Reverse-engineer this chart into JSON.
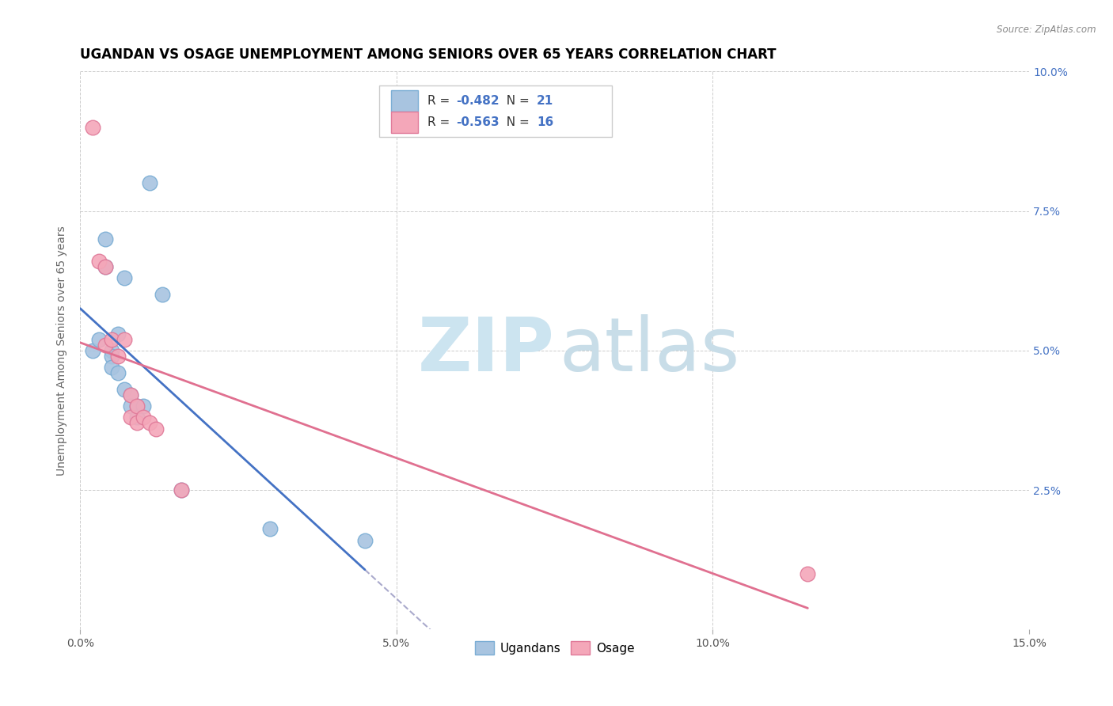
{
  "title": "UGANDAN VS OSAGE UNEMPLOYMENT AMONG SENIORS OVER 65 YEARS CORRELATION CHART",
  "source": "Source: ZipAtlas.com",
  "ylabel": "Unemployment Among Seniors over 65 years",
  "xlim": [
    0.0,
    0.15
  ],
  "ylim": [
    0.0,
    0.1
  ],
  "xticks": [
    0.0,
    0.05,
    0.1,
    0.15
  ],
  "xticklabels": [
    "0.0%",
    "5.0%",
    "10.0%",
    "15.0%"
  ],
  "yticks": [
    0.0,
    0.025,
    0.05,
    0.075,
    0.1
  ],
  "yticklabels_right": [
    "",
    "2.5%",
    "5.0%",
    "7.5%",
    "10.0%"
  ],
  "ugandan_x": [
    0.002,
    0.003,
    0.004,
    0.004,
    0.005,
    0.005,
    0.005,
    0.006,
    0.006,
    0.007,
    0.007,
    0.008,
    0.008,
    0.009,
    0.009,
    0.01,
    0.011,
    0.013,
    0.016,
    0.03,
    0.045
  ],
  "ugandan_y": [
    0.05,
    0.052,
    0.07,
    0.065,
    0.05,
    0.049,
    0.047,
    0.053,
    0.046,
    0.063,
    0.043,
    0.042,
    0.04,
    0.04,
    0.038,
    0.04,
    0.08,
    0.06,
    0.025,
    0.018,
    0.016
  ],
  "osage_x": [
    0.002,
    0.003,
    0.004,
    0.004,
    0.005,
    0.006,
    0.007,
    0.008,
    0.008,
    0.009,
    0.009,
    0.01,
    0.011,
    0.012,
    0.016,
    0.115
  ],
  "osage_y": [
    0.09,
    0.066,
    0.065,
    0.051,
    0.052,
    0.049,
    0.052,
    0.042,
    0.038,
    0.04,
    0.037,
    0.038,
    0.037,
    0.036,
    0.025,
    0.01
  ],
  "ugandan_color": "#a8c4e0",
  "osage_color": "#f4a7b9",
  "ugandan_edge": "#7aadd4",
  "osage_edge": "#e07a99",
  "line_ugandan": "#4472c4",
  "line_osage": "#e07090",
  "line_dashed": "#aaaacc",
  "ugandan_R": "-0.482",
  "ugandan_N": "21",
  "osage_R": "-0.563",
  "osage_N": "16",
  "legend_ugandan": "Ugandans",
  "legend_osage": "Osage",
  "watermark_zip": "ZIP",
  "watermark_atlas": "atlas",
  "watermark_color_zip": "#cce4f0",
  "watermark_color_atlas": "#c8dde8",
  "background_color": "#ffffff",
  "grid_color": "#cccccc",
  "title_color": "#000000",
  "axis_label_color": "#666666",
  "tick_color_right": "#4472c4",
  "title_fontsize": 12,
  "ylabel_fontsize": 10,
  "tick_fontsize": 10
}
